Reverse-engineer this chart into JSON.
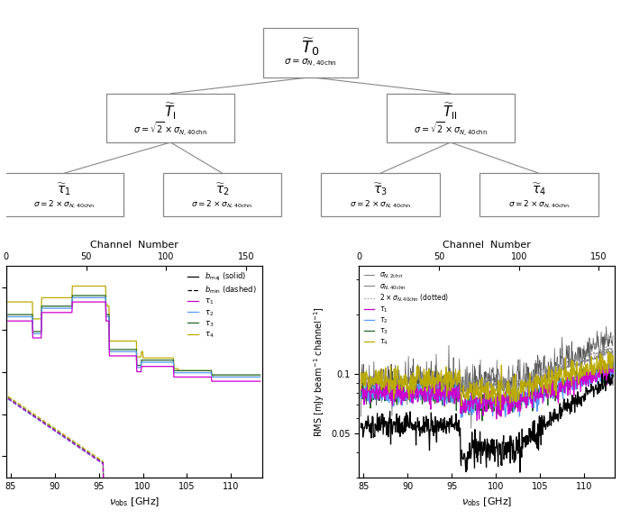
{
  "fig_width": 6.89,
  "fig_height": 5.76,
  "fig_dpi": 100,
  "box_edge_color": "#888888",
  "line_color": "#888888",
  "nu_min": 84.5,
  "nu_max": 113.5,
  "channel_min": 0,
  "channel_max": 160,
  "left_ylim": [
    1.3,
    2.3
  ],
  "left_yticks": [
    1.4,
    1.6,
    1.8,
    2.0,
    2.2
  ],
  "colors": {
    "tau1": "#CC00CC",
    "tau2": "#5599FF",
    "tau3": "#226622",
    "tau4": "#BBAA00",
    "black_noisy": "#111111",
    "gray_40chn": "#666666",
    "black_bottom": "#000000"
  }
}
